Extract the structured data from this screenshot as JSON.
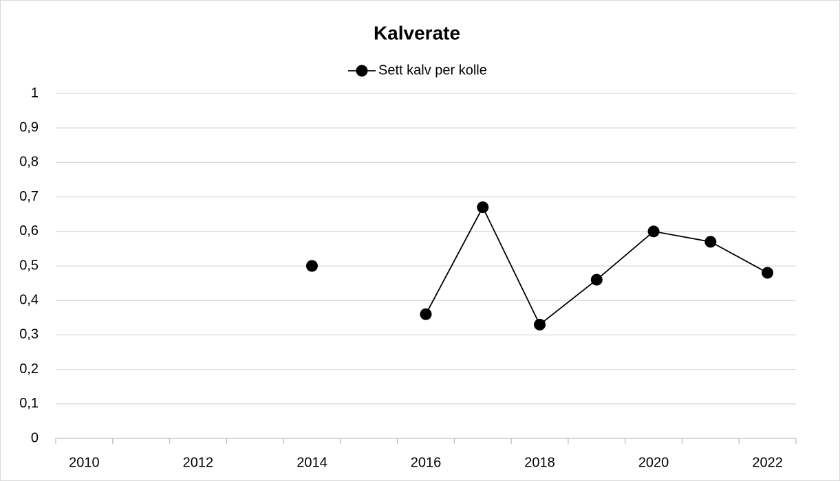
{
  "chart_data": {
    "type": "line",
    "title": "Kalverate",
    "categories": [
      "2010",
      null,
      "2012",
      null,
      "2014",
      null,
      "2016",
      null,
      "2018",
      null,
      "2020",
      null,
      "2022"
    ],
    "series": [
      {
        "name": "Sett kalv per kolle",
        "color": "#000000",
        "values": [
          null,
          null,
          null,
          null,
          0.5,
          null,
          0.36,
          0.67,
          0.33,
          0.46,
          0.6,
          0.57,
          0.48
        ]
      }
    ],
    "ylim": [
      0,
      1
    ],
    "yticks": [
      0,
      {
        "value": 0.1,
        "label": "0,1"
      },
      {
        "value": 0.2,
        "label": "0,2"
      },
      {
        "value": 0.3,
        "label": "0,3"
      },
      {
        "value": 0.4,
        "label": "0,4"
      },
      {
        "value": 0.5,
        "label": "0,5"
      },
      {
        "value": 0.6,
        "label": "0,6"
      },
      {
        "value": 0.7,
        "label": "0,7"
      },
      {
        "value": 0.8,
        "label": "0,8"
      },
      {
        "value": 0.9,
        "label": "0,9"
      },
      1
    ],
    "grid": true,
    "legend": "top"
  }
}
